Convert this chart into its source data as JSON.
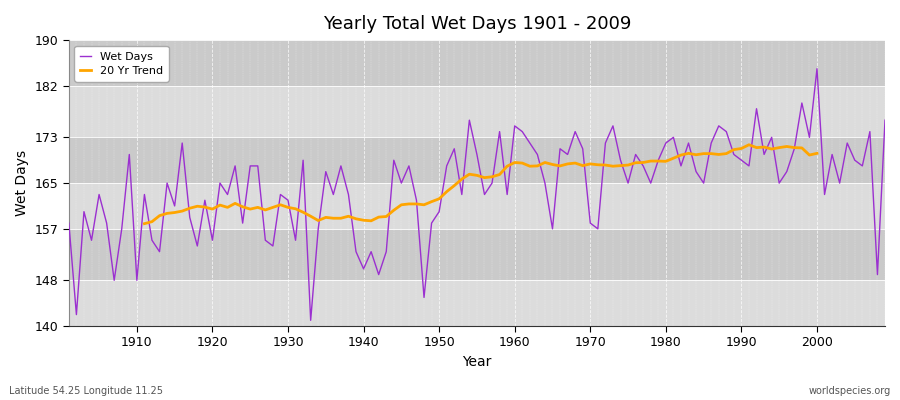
{
  "title": "Yearly Total Wet Days 1901 - 2009",
  "xlabel": "Year",
  "ylabel": "Wet Days",
  "footnote_left": "Latitude 54.25 Longitude 11.25",
  "footnote_right": "worldspecies.org",
  "ylim": [
    140,
    190
  ],
  "yticks": [
    140,
    148,
    157,
    165,
    173,
    182,
    190
  ],
  "xticks": [
    1910,
    1920,
    1930,
    1940,
    1950,
    1960,
    1970,
    1980,
    1990,
    2000
  ],
  "wet_days_color": "#9B30D0",
  "trend_color": "#FFA500",
  "bg_color": "#DCDCDC",
  "legend_wet": "Wet Days",
  "legend_trend": "20 Yr Trend",
  "years": [
    1901,
    1902,
    1903,
    1904,
    1905,
    1906,
    1907,
    1908,
    1909,
    1910,
    1911,
    1912,
    1913,
    1914,
    1915,
    1916,
    1917,
    1918,
    1919,
    1920,
    1921,
    1922,
    1923,
    1924,
    1925,
    1926,
    1927,
    1928,
    1929,
    1930,
    1931,
    1932,
    1933,
    1934,
    1935,
    1936,
    1937,
    1938,
    1939,
    1940,
    1941,
    1942,
    1943,
    1944,
    1945,
    1946,
    1947,
    1948,
    1949,
    1950,
    1951,
    1952,
    1953,
    1954,
    1955,
    1956,
    1957,
    1958,
    1959,
    1960,
    1961,
    1962,
    1963,
    1964,
    1965,
    1966,
    1967,
    1968,
    1969,
    1970,
    1971,
    1972,
    1973,
    1974,
    1975,
    1976,
    1977,
    1978,
    1979,
    1980,
    1981,
    1982,
    1983,
    1984,
    1985,
    1986,
    1987,
    1988,
    1989,
    1990,
    1991,
    1992,
    1993,
    1994,
    1995,
    1996,
    1997,
    1998,
    1999,
    2000,
    2001,
    2002,
    2003,
    2004,
    2005,
    2006,
    2007,
    2008,
    2009
  ],
  "wet_days": [
    158,
    142,
    160,
    155,
    163,
    158,
    148,
    157,
    170,
    148,
    163,
    155,
    153,
    165,
    161,
    172,
    159,
    154,
    162,
    155,
    165,
    163,
    168,
    158,
    168,
    168,
    155,
    154,
    163,
    162,
    155,
    169,
    141,
    157,
    167,
    163,
    168,
    163,
    153,
    150,
    153,
    149,
    153,
    169,
    165,
    168,
    162,
    145,
    158,
    160,
    168,
    171,
    163,
    176,
    170,
    163,
    165,
    174,
    163,
    175,
    174,
    172,
    170,
    165,
    157,
    171,
    170,
    174,
    171,
    158,
    157,
    172,
    175,
    169,
    165,
    170,
    168,
    165,
    169,
    172,
    173,
    168,
    172,
    167,
    165,
    172,
    175,
    174,
    170,
    169,
    168,
    178,
    170,
    173,
    165,
    167,
    171,
    179,
    173,
    185,
    163,
    170,
    165,
    172,
    169,
    168,
    174,
    149,
    176
  ]
}
